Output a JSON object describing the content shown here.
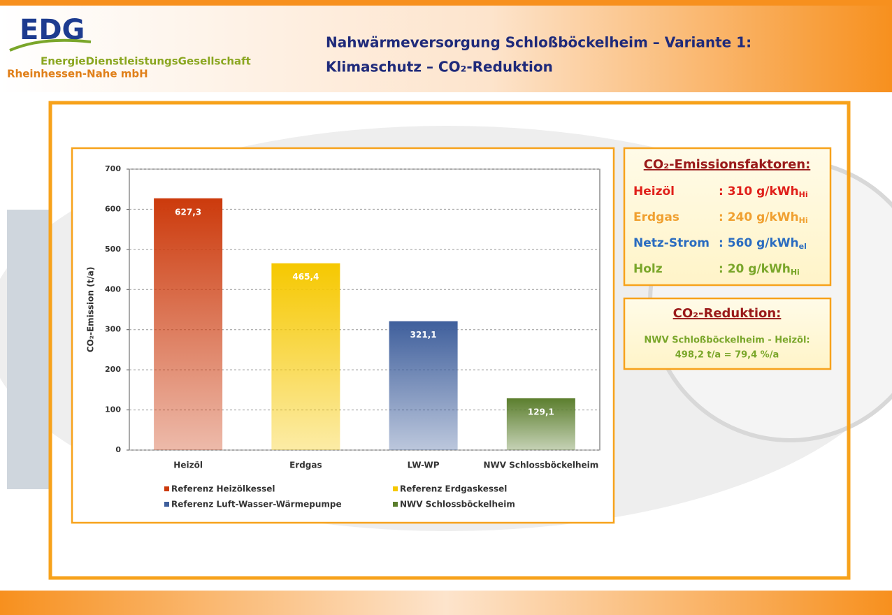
{
  "header": {
    "logo": "EDG",
    "company_line1": "EnergieDienstleistungsGesellschaft",
    "company_line2": "Rheinhessen-Nahe mbH",
    "title_line1": "Nahwärmeversorgung Schloßböckelheim – Variante 1:",
    "title_line2": "Klimaschutz – CO₂-Reduktion"
  },
  "chart_data": {
    "type": "bar",
    "y_label": "CO₂-Emission (t/a)",
    "categories": [
      "Heizöl",
      "Erdgas",
      "LW-WP",
      "NWV Schlossböckelheim"
    ],
    "values": [
      627.3,
      465.4,
      321.1,
      129.1
    ],
    "value_labels": [
      "627,3",
      "465,4",
      "321,1",
      "129,1"
    ],
    "colors": [
      "#cc3a0c",
      "#f6c800",
      "#3f5f9c",
      "#5b7e2d"
    ],
    "legend": [
      "Referenz Heizölkessel",
      "Referenz Erdgaskessel",
      "Referenz Luft-Wasser-Wärmepumpe",
      "NWV Schlossböckelheim"
    ],
    "ylim": [
      0,
      700
    ],
    "yticks": [
      0,
      100,
      200,
      300,
      400,
      500,
      600,
      700
    ],
    "grid": true
  },
  "factors": {
    "heading": "CO₂-Emissionsfaktoren:",
    "rows": [
      {
        "label": "Heizöl",
        "value": ": 310 g/kWh",
        "sub": "Hi",
        "color": "#e0201a"
      },
      {
        "label": "Erdgas",
        "value": ": 240 g/kWh",
        "sub": "Hi",
        "color": "#f0a030"
      },
      {
        "label": "Netz-Strom",
        "value": ": 560 g/kWh",
        "sub": "el",
        "color": "#2a6cc0"
      },
      {
        "label": "Holz",
        "value": ":  20 g/kWh",
        "sub": "Hi",
        "color": "#7aa62a"
      }
    ]
  },
  "reduction": {
    "heading": "CO₂-Reduktion:",
    "line1": "NWV Schloßböckelheim - Heizöl:",
    "line2": "498,2 t/a = 79,4 %/a"
  }
}
